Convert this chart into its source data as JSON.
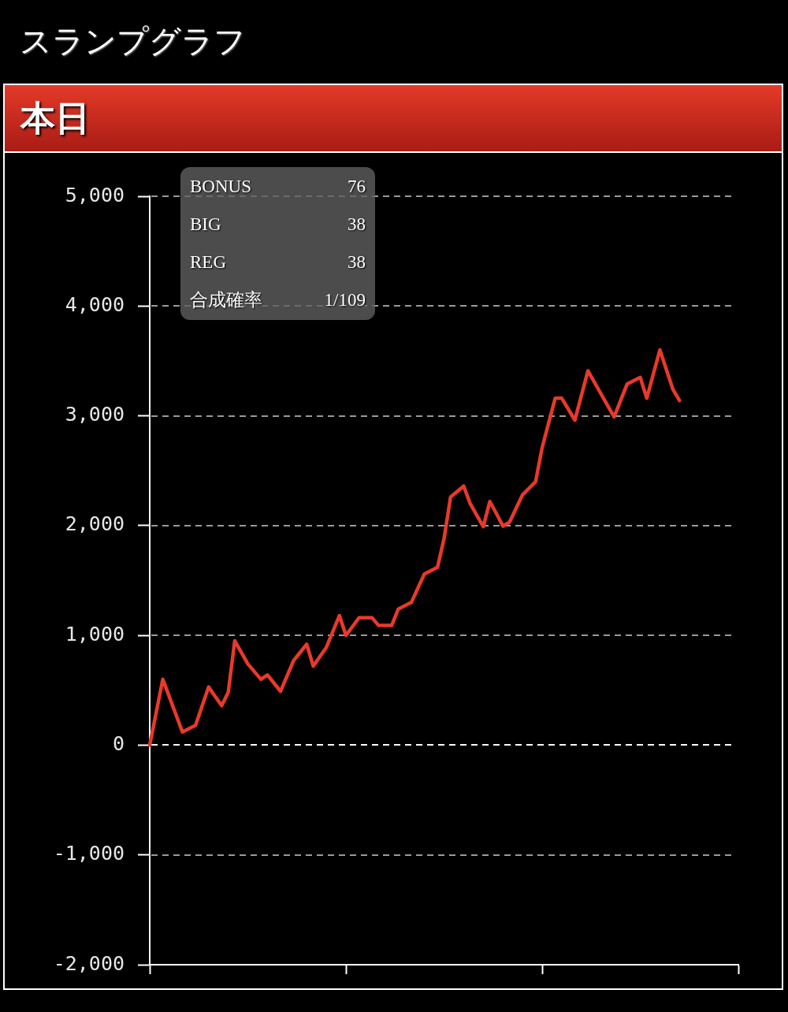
{
  "chart_data": {
    "type": "line",
    "title": "スランプグラフ",
    "subtitle": "本日",
    "categories": [
      null,
      null,
      null,
      null,
      null,
      null,
      null,
      null,
      null,
      null,
      null,
      null,
      null,
      null,
      null,
      null,
      null,
      null,
      null,
      null,
      null,
      null,
      null,
      null,
      null,
      null,
      null,
      null,
      null,
      null,
      null,
      null,
      null,
      null,
      null,
      null,
      null,
      null,
      null,
      null,
      null,
      null,
      null,
      null,
      null,
      null,
      null,
      null,
      null,
      null,
      null,
      null,
      null,
      null,
      null,
      null,
      null,
      null,
      null,
      null,
      null,
      null,
      null,
      null,
      null,
      null,
      null,
      null,
      null,
      null,
      null,
      null,
      null,
      null,
      null,
      null,
      null,
      null,
      null,
      null,
      null,
      null,
      null,
      null,
      null,
      null,
      null,
      null,
      null,
      null,
      null
    ],
    "values": [
      0,
      300,
      600,
      440,
      280,
      120,
      150,
      180,
      355,
      530,
      445,
      360,
      480,
      950,
      845,
      740,
      670,
      600,
      640,
      565,
      490,
      630,
      770,
      845,
      920,
      720,
      805,
      890,
      1035,
      1180,
      1000,
      1080,
      1160,
      1160,
      1160,
      1090,
      1090,
      1090,
      1240,
      1270,
      1300,
      1430,
      1560,
      1590,
      1620,
      1880,
      2260,
      2310,
      2360,
      2200,
      2095,
      1990,
      2220,
      2110,
      1995,
      2030,
      2155,
      2280,
      2340,
      2400,
      2710,
      2935,
      3160,
      3160,
      3060,
      2960,
      3185,
      3410,
      3305,
      3200,
      3095,
      2990,
      3140,
      3290,
      3320,
      3350,
      3160,
      3380,
      3600,
      3420,
      3240,
      3140,
      null,
      null,
      null,
      null,
      null,
      null,
      null,
      null,
      null
    ],
    "color": "#e8392b",
    "ylim": [
      -2000,
      5000
    ],
    "yticks": [
      {
        "value": -2000,
        "label": "-2,000"
      },
      {
        "value": -1000,
        "label": "-1,000"
      },
      0,
      {
        "value": 1000,
        "label": "1,000"
      },
      {
        "value": 2000,
        "label": "2,000"
      },
      {
        "value": 3000,
        "label": "3,000"
      },
      {
        "value": 4000,
        "label": "4,000"
      },
      {
        "value": 5000,
        "label": "5,000"
      }
    ],
    "grid": "y",
    "tick_labels": "y",
    "ref_lines": [
      {
        "axis": "y",
        "value": 0,
        "color": "#ffffff",
        "line_style": "dashed"
      }
    ],
    "annotations": [
      "BONUS",
      "76",
      "BIG",
      "38",
      "REG",
      "38",
      "合成確率",
      "1/109"
    ]
  }
}
